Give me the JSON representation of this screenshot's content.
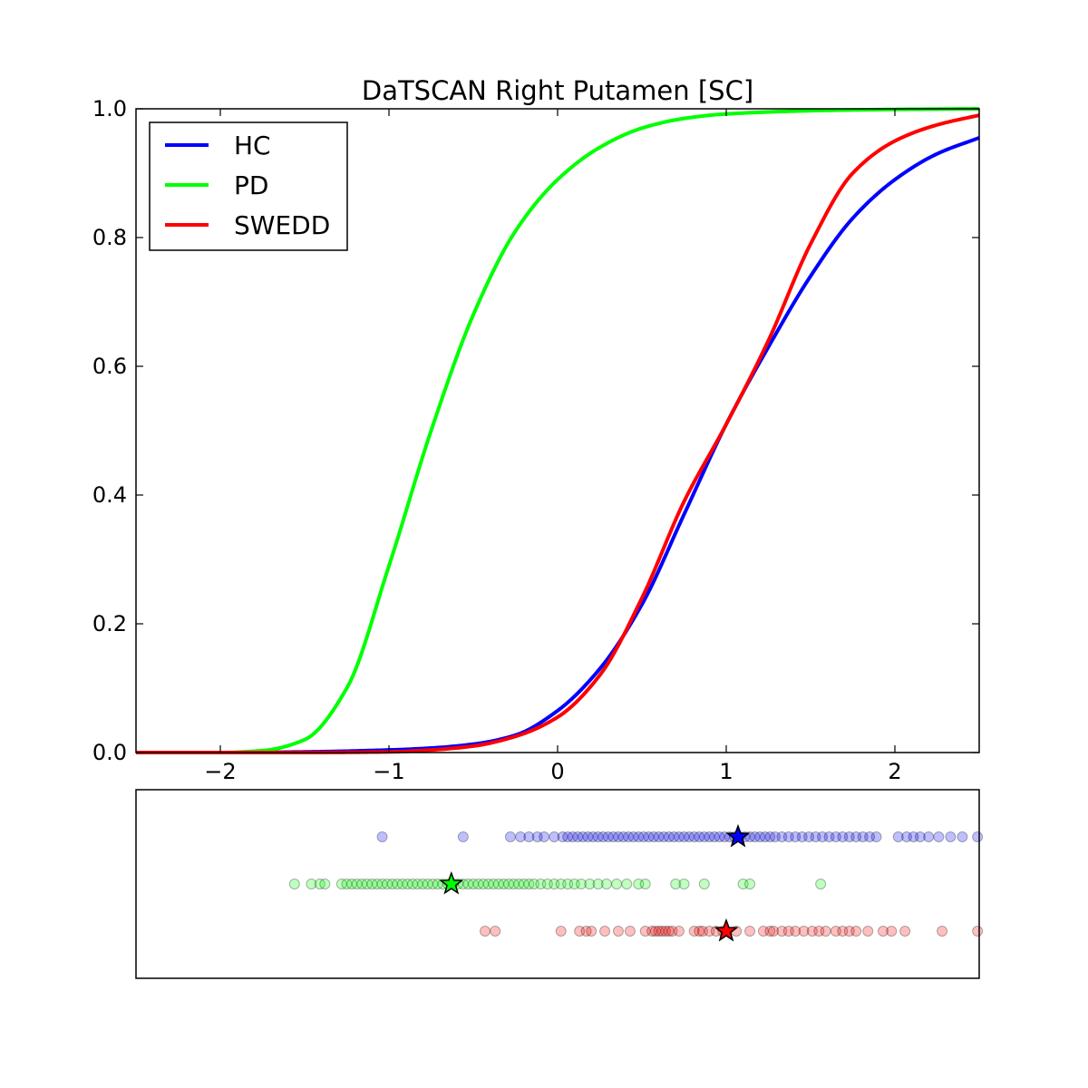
{
  "chart_data": [
    {
      "type": "line",
      "title": "DaTSCAN Right Putamen [SC]",
      "xlabel": "",
      "ylabel": "",
      "xlim": [
        -2.5,
        2.5
      ],
      "ylim": [
        0.0,
        1.0
      ],
      "xticks": [
        "−2",
        "−1",
        "0",
        "1",
        "2"
      ],
      "xtick_values": [
        -2,
        -1,
        0,
        1,
        2
      ],
      "yticks": [
        "0.0",
        "0.2",
        "0.4",
        "0.6",
        "0.8",
        "1.0"
      ],
      "ytick_values": [
        0.0,
        0.2,
        0.4,
        0.6,
        0.8,
        1.0
      ],
      "grid": false,
      "legend_position": "upper-left",
      "series": [
        {
          "name": "HC",
          "color": "#0000ff",
          "x": [
            -2.5,
            -2.0,
            -1.5,
            -1.0,
            -0.75,
            -0.5,
            -0.25,
            0.0,
            0.25,
            0.5,
            0.75,
            1.0,
            1.25,
            1.5,
            1.75,
            2.0,
            2.25,
            2.5
          ],
          "y": [
            0.0,
            0.0,
            0.001,
            0.004,
            0.007,
            0.013,
            0.027,
            0.065,
            0.13,
            0.23,
            0.37,
            0.51,
            0.63,
            0.74,
            0.83,
            0.89,
            0.93,
            0.955
          ]
        },
        {
          "name": "PD",
          "color": "#00ff00",
          "x": [
            -2.5,
            -2.0,
            -1.75,
            -1.5,
            -1.25,
            -1.0,
            -0.75,
            -0.5,
            -0.25,
            0.0,
            0.25,
            0.5,
            0.75,
            1.0,
            1.5,
            2.0,
            2.5
          ],
          "y": [
            0.0,
            0.0,
            0.003,
            0.02,
            0.1,
            0.29,
            0.5,
            0.68,
            0.81,
            0.89,
            0.94,
            0.97,
            0.985,
            0.992,
            0.997,
            0.999,
            1.0
          ]
        },
        {
          "name": "SWEDD",
          "color": "#ff0000",
          "x": [
            -2.5,
            -2.0,
            -1.5,
            -1.0,
            -0.75,
            -0.5,
            -0.25,
            0.0,
            0.25,
            0.5,
            0.75,
            1.0,
            1.25,
            1.5,
            1.75,
            2.0,
            2.25,
            2.5
          ],
          "y": [
            0.0,
            0.0,
            0.0,
            0.001,
            0.004,
            0.01,
            0.025,
            0.055,
            0.12,
            0.24,
            0.39,
            0.51,
            0.64,
            0.79,
            0.9,
            0.95,
            0.975,
            0.99
          ]
        }
      ]
    },
    {
      "type": "scatter",
      "xlim": [
        -2.5,
        2.5
      ],
      "series": [
        {
          "name": "HC",
          "color": "#0000ff",
          "row": 0,
          "marker_x": 1.07,
          "x": [
            -1.04,
            -0.56,
            -0.28,
            -0.22,
            -0.17,
            -0.12,
            -0.08,
            -0.02,
            0.03,
            0.06,
            0.09,
            0.12,
            0.15,
            0.18,
            0.21,
            0.24,
            0.27,
            0.3,
            0.33,
            0.36,
            0.39,
            0.42,
            0.45,
            0.48,
            0.51,
            0.54,
            0.57,
            0.6,
            0.63,
            0.66,
            0.69,
            0.72,
            0.75,
            0.78,
            0.81,
            0.84,
            0.87,
            0.9,
            0.93,
            0.96,
            0.99,
            1.02,
            1.05,
            1.08,
            1.11,
            1.14,
            1.17,
            1.2,
            1.23,
            1.26,
            1.29,
            1.33,
            1.37,
            1.41,
            1.45,
            1.49,
            1.53,
            1.57,
            1.61,
            1.65,
            1.69,
            1.73,
            1.77,
            1.81,
            1.85,
            1.89,
            2.02,
            2.07,
            2.11,
            2.15,
            2.2,
            2.26,
            2.33,
            2.4,
            2.49
          ]
        },
        {
          "name": "PD",
          "color": "#00ff00",
          "row": 1,
          "marker_x": -0.63,
          "x": [
            -1.56,
            -1.46,
            -1.41,
            -1.38,
            -1.28,
            -1.25,
            -1.22,
            -1.19,
            -1.16,
            -1.13,
            -1.1,
            -1.07,
            -1.04,
            -1.01,
            -0.98,
            -0.95,
            -0.92,
            -0.89,
            -0.86,
            -0.83,
            -0.8,
            -0.77,
            -0.74,
            -0.71,
            -0.68,
            -0.65,
            -0.62,
            -0.59,
            -0.56,
            -0.53,
            -0.5,
            -0.47,
            -0.44,
            -0.41,
            -0.38,
            -0.35,
            -0.32,
            -0.29,
            -0.26,
            -0.23,
            -0.2,
            -0.17,
            -0.14,
            -0.1,
            -0.06,
            -0.02,
            0.02,
            0.06,
            0.1,
            0.14,
            0.19,
            0.24,
            0.29,
            0.35,
            0.41,
            0.48,
            0.52,
            0.7,
            0.75,
            0.87,
            1.1,
            1.14,
            1.56
          ]
        },
        {
          "name": "SWEDD",
          "color": "#ff0000",
          "row": 2,
          "marker_x": 1.0,
          "x": [
            -0.43,
            -0.37,
            0.02,
            0.13,
            0.17,
            0.2,
            0.28,
            0.36,
            0.43,
            0.52,
            0.56,
            0.58,
            0.6,
            0.62,
            0.64,
            0.66,
            0.68,
            0.72,
            0.81,
            0.84,
            0.86,
            0.9,
            0.94,
            0.98,
            1.06,
            1.14,
            1.22,
            1.26,
            1.28,
            1.33,
            1.37,
            1.41,
            1.46,
            1.51,
            1.55,
            1.59,
            1.65,
            1.69,
            1.73,
            1.77,
            1.84,
            1.93,
            1.98,
            2.06,
            2.28,
            2.49
          ]
        }
      ]
    }
  ]
}
